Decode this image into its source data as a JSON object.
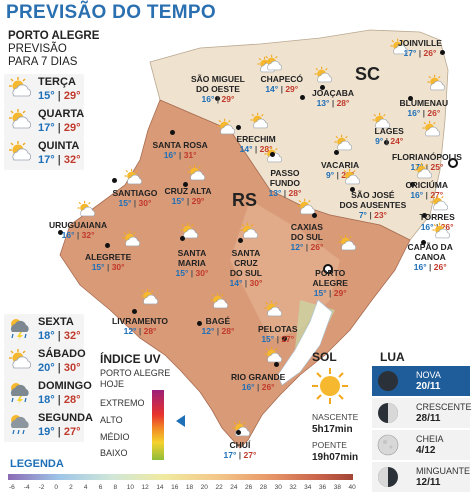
{
  "title": "PREVISÃO DO TEMPO",
  "poa": {
    "city": "PORTO ALEGRE",
    "line1": "PREVISÃO",
    "line2": "PARA 7 DIAS"
  },
  "forecast": [
    {
      "day": "TERÇA",
      "min": "15°",
      "max": "29°",
      "icon": "sun-cloud-icon"
    },
    {
      "day": "QUARTA",
      "min": "17°",
      "max": "29°",
      "icon": "sun-cloud-icon"
    },
    {
      "day": "QUINTA",
      "min": "17°",
      "max": "32°",
      "icon": "sun-cloud-icon"
    },
    {
      "day": "SEXTA",
      "min": "18°",
      "max": "32°",
      "icon": "storm-icon"
    },
    {
      "day": "SÁBADO",
      "min": "20°",
      "max": "30°",
      "icon": "sun-cloud-icon"
    },
    {
      "day": "DOMINGO",
      "min": "18°",
      "max": "28°",
      "icon": "storm-icon"
    },
    {
      "day": "SEGUNDA",
      "min": "19°",
      "max": "27°",
      "icon": "rain-icon"
    }
  ],
  "sep": "|",
  "states": {
    "sc": "SC",
    "rs": "RS"
  },
  "cities": [
    {
      "name": "JOINVILLE",
      "min": "17°",
      "max": "26°"
    },
    {
      "name": "SÃO MIGUEL\nDO OESTE",
      "min": "16°",
      "max": "29°"
    },
    {
      "name": "CHAPECÓ",
      "min": "14°",
      "max": "29°"
    },
    {
      "name": "JOAÇABA",
      "min": "13°",
      "max": "28°"
    },
    {
      "name": "BLUMENAU",
      "min": "16°",
      "max": "26°"
    },
    {
      "name": "LAGES",
      "min": "9°",
      "max": "24°"
    },
    {
      "name": "FLORIANÓPOLIS",
      "min": "17°",
      "max": "25°"
    },
    {
      "name": "SANTA ROSA",
      "min": "16°",
      "max": "31°"
    },
    {
      "name": "ERECHIM",
      "min": "14°",
      "max": "28°"
    },
    {
      "name": "PASSO\nFUNDO",
      "min": "13°",
      "max": "28°"
    },
    {
      "name": "VACARIA",
      "min": "9°",
      "max": "25°"
    },
    {
      "name": "CRICIÚMA",
      "min": "16°",
      "max": "27°"
    },
    {
      "name": "SANTIAGO",
      "min": "15°",
      "max": "30°"
    },
    {
      "name": "CRUZ ALTA",
      "min": "15°",
      "max": "29°"
    },
    {
      "name": "SÃO JOSÉ\nDOS AUSENTES",
      "min": "7°",
      "max": "23°"
    },
    {
      "name": "TORRES",
      "min": "16°",
      "max": "26°"
    },
    {
      "name": "URUGUAIANA",
      "min": "16°",
      "max": "32°"
    },
    {
      "name": "CAXIAS\nDO SUL",
      "min": "12°",
      "max": "26°"
    },
    {
      "name": "CAPÃO DA\nCANOA",
      "min": "16°",
      "max": "26°"
    },
    {
      "name": "ALEGRETE",
      "min": "15°",
      "max": "30°"
    },
    {
      "name": "SANTA\nMARIA",
      "min": "15°",
      "max": "30°"
    },
    {
      "name": "SANTA\nCRUZ\nDO SUL",
      "min": "14°",
      "max": "30°"
    },
    {
      "name": "PORTO\nALEGRE",
      "min": "15°",
      "max": "29°"
    },
    {
      "name": "LIVRAMENTO",
      "min": "12°",
      "max": "28°"
    },
    {
      "name": "BAGÉ",
      "min": "12°",
      "max": "28°"
    },
    {
      "name": "PELOTAS",
      "min": "15°",
      "max": "27°"
    },
    {
      "name": "RIO GRANDE",
      "min": "16°",
      "max": "26°"
    },
    {
      "name": "CHUÍ",
      "min": "17°",
      "max": "27°"
    }
  ],
  "uv": {
    "title": "ÍNDICE UV",
    "sub1": "PORTO ALEGRE",
    "sub2": "HOJE",
    "levels": [
      "EXTREMO",
      "ALTO",
      "MÉDIO",
      "BAIXO"
    ],
    "current": "ALTO"
  },
  "sun": {
    "title": "SOL",
    "rise_label": "NASCENTE",
    "rise": "5h17min",
    "set_label": "POENTE",
    "set": "19h07min"
  },
  "moon": {
    "title": "LUA",
    "phases": [
      {
        "name": "NOVA",
        "date": "20/11",
        "current": true
      },
      {
        "name": "CRESCENTE",
        "date": "28/11",
        "current": false
      },
      {
        "name": "CHEIA",
        "date": "4/12",
        "current": false
      },
      {
        "name": "MINGUANTE",
        "date": "12/11",
        "current": false
      }
    ]
  },
  "legend": {
    "title": "LEGENDA",
    "ticks": [
      "-6",
      "-4",
      "-2",
      "0",
      "2",
      "4",
      "6",
      "8",
      "10",
      "12",
      "14",
      "16",
      "18",
      "20",
      "22",
      "24",
      "26",
      "28",
      "30",
      "32",
      "34",
      "36",
      "38",
      "40"
    ]
  },
  "colors": {
    "title": "#2a6fb0",
    "min": "#1d6fb8",
    "max": "#c0392b",
    "rs_land": "#d99a78",
    "sc_land": "#efe2cf"
  }
}
